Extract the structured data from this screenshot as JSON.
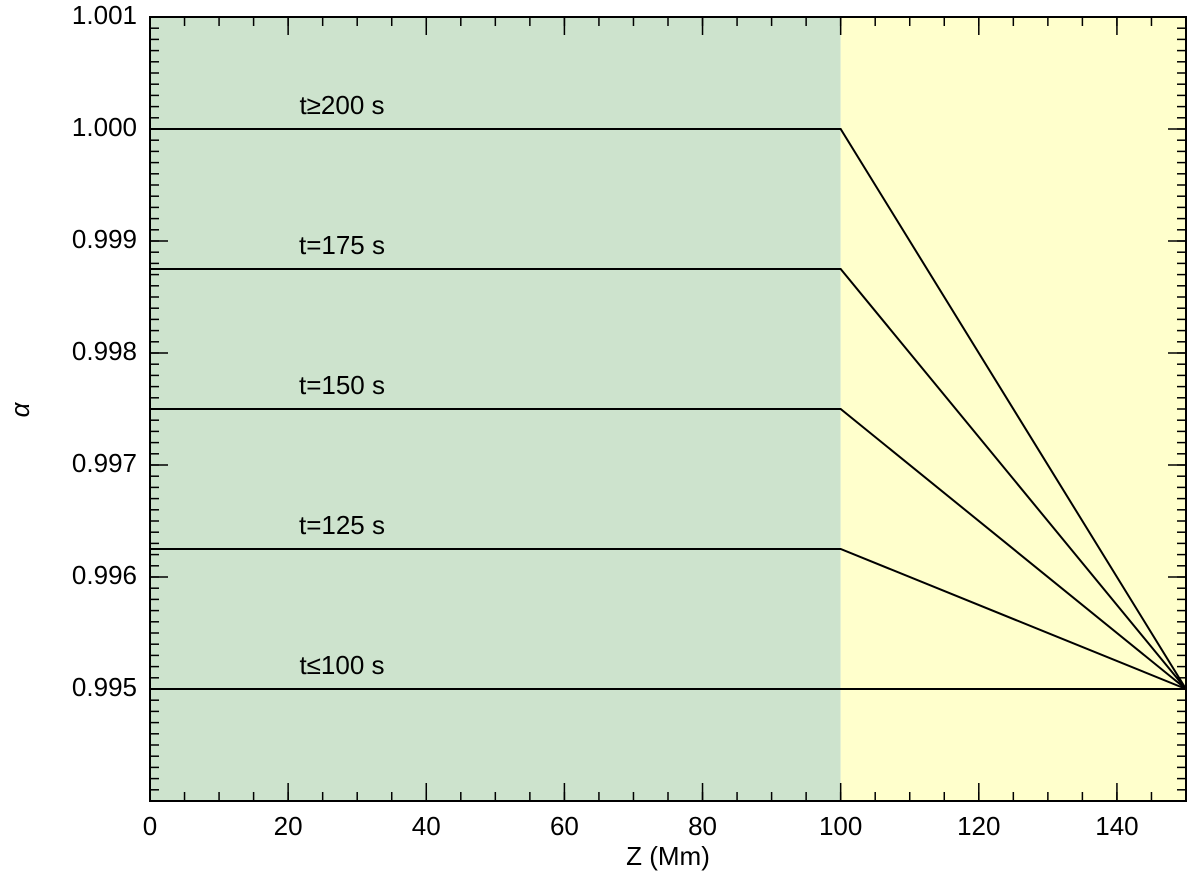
{
  "chart_data": {
    "type": "line",
    "x_label": "Z (Mm)",
    "y_label": "α",
    "xlim": [
      0,
      150
    ],
    "ylim": [
      0.994,
      1.001
    ],
    "xticks": [
      0,
      20,
      40,
      60,
      80,
      100,
      120,
      140
    ],
    "yticks": [
      0.995,
      0.996,
      0.997,
      0.998,
      0.999,
      {
        "value": 1,
        "label": "1.000"
      },
      1.001
    ],
    "shaded_regions": [
      {
        "from": 0,
        "to": 100,
        "color": "#cde3cd"
      },
      {
        "from": 100,
        "to": 150,
        "color": "#ffffcc"
      }
    ],
    "series": [
      {
        "name": "t≥200 s",
        "color": "#000000",
        "x": [
          0,
          100,
          150
        ],
        "values": [
          1.0,
          1.0,
          0.995
        ]
      },
      {
        "name": "t=175 s",
        "color": "#000000",
        "x": [
          0,
          100,
          150
        ],
        "values": [
          0.99875,
          0.99875,
          0.995
        ]
      },
      {
        "name": "t=150 s",
        "color": "#000000",
        "x": [
          0,
          100,
          150
        ],
        "values": [
          0.9975,
          0.9975,
          0.995
        ]
      },
      {
        "name": "t=125 s",
        "color": "#000000",
        "x": [
          0,
          100,
          150
        ],
        "values": [
          0.99625,
          0.99625,
          0.995
        ]
      },
      {
        "name": "t≤100 s",
        "color": "#000000",
        "x": [
          0,
          100,
          150
        ],
        "values": [
          0.995,
          0.995,
          0.995
        ]
      }
    ]
  }
}
